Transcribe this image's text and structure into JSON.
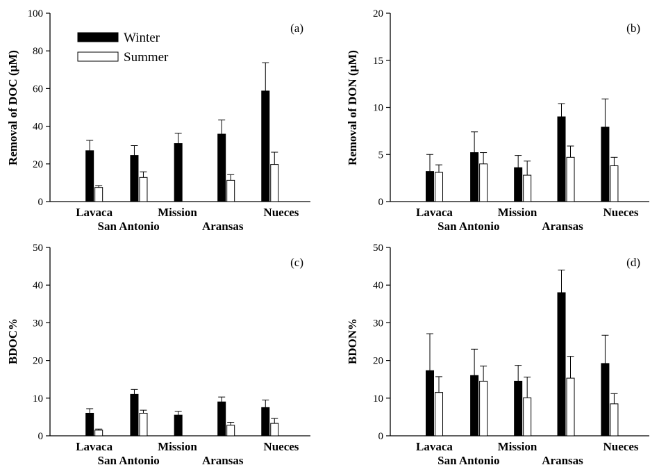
{
  "figure": {
    "legend": {
      "winter_label": "Winter",
      "summer_label": "Summer",
      "winter_color": "#000000",
      "summer_color": "#ffffff"
    }
  },
  "chart_data": [
    {
      "type": "bar",
      "panel_label": "(a)",
      "ylabel": "Removal of DOC (μM)",
      "ylim": [
        0,
        100
      ],
      "yticks": [
        0,
        20,
        40,
        60,
        80,
        100
      ],
      "categories": [
        "Lavaca",
        "San Antonio",
        "Mission",
        "Aransas",
        "Nueces"
      ],
      "series": [
        {
          "name": "Winter",
          "values": [
            27.0,
            24.5,
            30.8,
            35.8,
            58.7
          ],
          "errors": [
            5.5,
            5.2,
            5.5,
            7.5,
            15.0
          ]
        },
        {
          "name": "Summer",
          "values": [
            7.5,
            12.8,
            null,
            11.3,
            19.7
          ],
          "errors": [
            1.0,
            3.0,
            null,
            3.0,
            6.5
          ]
        }
      ]
    },
    {
      "type": "bar",
      "panel_label": "(b)",
      "ylabel": "Removal of DON (μM)",
      "ylim": [
        0,
        20
      ],
      "yticks": [
        0,
        5,
        10,
        15,
        20
      ],
      "categories": [
        "Lavaca",
        "San Antonio",
        "Mission",
        "Aransas",
        "Nueces"
      ],
      "series": [
        {
          "name": "Winter",
          "values": [
            3.2,
            5.2,
            3.6,
            9.0,
            7.9
          ],
          "errors": [
            1.8,
            2.2,
            1.3,
            1.4,
            3.0
          ]
        },
        {
          "name": "Summer",
          "values": [
            3.1,
            4.0,
            2.8,
            4.7,
            3.8
          ],
          "errors": [
            0.8,
            1.2,
            1.5,
            1.2,
            0.9
          ]
        }
      ]
    },
    {
      "type": "bar",
      "panel_label": "(c)",
      "ylabel": "BDOC%",
      "ylim": [
        0,
        50
      ],
      "yticks": [
        0,
        10,
        20,
        30,
        40,
        50
      ],
      "categories": [
        "Lavaca",
        "San Antonio",
        "Mission",
        "Aransas",
        "Nueces"
      ],
      "series": [
        {
          "name": "Winter",
          "values": [
            6.0,
            11.0,
            5.5,
            9.0,
            7.5
          ],
          "errors": [
            1.2,
            1.3,
            1.0,
            1.3,
            2.0
          ]
        },
        {
          "name": "Summer",
          "values": [
            1.5,
            6.0,
            null,
            2.8,
            3.3
          ],
          "errors": [
            0.3,
            0.8,
            null,
            0.8,
            1.3
          ]
        }
      ]
    },
    {
      "type": "bar",
      "panel_label": "(d)",
      "ylabel": "BDON%",
      "ylim": [
        0,
        50
      ],
      "yticks": [
        0,
        10,
        20,
        30,
        40,
        50
      ],
      "categories": [
        "Lavaca",
        "San Antonio",
        "Mission",
        "Aransas",
        "Nueces"
      ],
      "series": [
        {
          "name": "Winter",
          "values": [
            17.3,
            16.0,
            14.5,
            38.0,
            19.2
          ],
          "errors": [
            9.8,
            7.0,
            4.2,
            6.0,
            7.5
          ]
        },
        {
          "name": "Summer",
          "values": [
            11.5,
            14.5,
            10.1,
            15.3,
            8.5
          ],
          "errors": [
            4.2,
            4.0,
            5.5,
            5.8,
            2.7
          ]
        }
      ]
    }
  ]
}
